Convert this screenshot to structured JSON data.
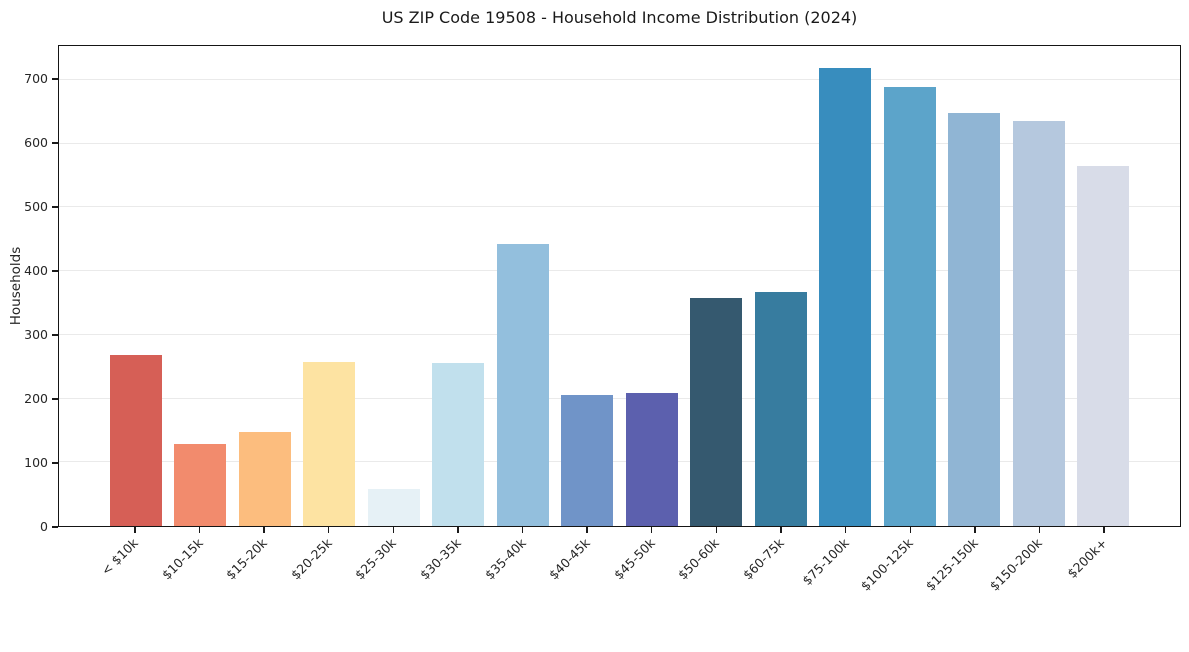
{
  "figure": {
    "background": "#ffffff",
    "spine_color": "#151515",
    "grid_color": "#eaeaea",
    "text_color": "#262626"
  },
  "chart_data": {
    "type": "bar",
    "title": "US ZIP Code 19508 - Household Income Distribution (2024)",
    "xlabel": "",
    "ylabel": "Households",
    "categories": [
      "< $10k",
      "$10-15k",
      "$15-20k",
      "$20-25k",
      "$25-30k",
      "$30-35k",
      "$35-40k",
      "$40-45k",
      "$45-50k",
      "$50-60k",
      "$60-75k",
      "$75-100k",
      "$100-125k",
      "$125-150k",
      "$150-200k",
      "$200k+"
    ],
    "values": [
      268,
      128,
      148,
      257,
      58,
      255,
      443,
      205,
      208,
      357,
      367,
      718,
      688,
      648,
      636,
      565
    ],
    "bar_colors": [
      "#d65f56",
      "#f28b6d",
      "#fcbd7e",
      "#fde3a2",
      "#e6f1f6",
      "#c1e0ed",
      "#93bfdd",
      "#7094c8",
      "#5c60ae",
      "#35596f",
      "#377c9f",
      "#388dbe",
      "#5ca4ca",
      "#90b5d4",
      "#b5c8de",
      "#d8dce8"
    ],
    "ylim": [
      0,
      753
    ],
    "yticks": [
      0,
      100,
      200,
      300,
      400,
      500,
      600,
      700
    ],
    "grid": "horizontal",
    "legend": "none"
  }
}
